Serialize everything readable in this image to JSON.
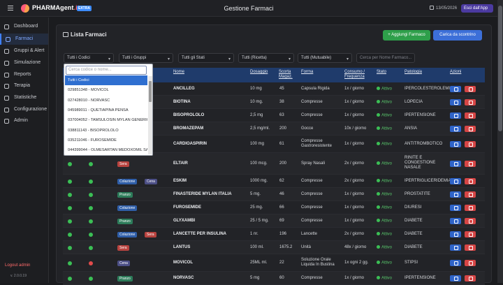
{
  "app": {
    "brand": "PHARMAgent",
    "brand_dot": ".it",
    "badge": "EXTRA"
  },
  "header": {
    "title": "Gestione Farmaci",
    "date": "13/05/2026",
    "exit_label": "Esci dall'App"
  },
  "sidebar": {
    "items": [
      {
        "label": "Dashboard",
        "icon": "gauge-icon"
      },
      {
        "label": "Farmaci",
        "icon": "pill-icon",
        "active": true
      },
      {
        "label": "Gruppi & Alert",
        "icon": "bell-icon"
      },
      {
        "label": "Simulazione",
        "icon": "play-icon"
      },
      {
        "label": "Reports",
        "icon": "report-icon"
      },
      {
        "label": "Terapia",
        "icon": "calendar-icon"
      },
      {
        "label": "Statistiche",
        "icon": "chart-icon"
      },
      {
        "label": "Configurazione",
        "icon": "gear-icon"
      },
      {
        "label": "Admin",
        "icon": "user-icon"
      }
    ],
    "logout": "Logout admin",
    "version": "v. 2.0.0.19"
  },
  "panel": {
    "title": "Lista Farmaci",
    "add_button": "+ Aggiungi Farmaco",
    "load_button": "Carica da scontrino"
  },
  "filters": {
    "codici": "Tutti i Codici",
    "gruppi": "Tutti i Gruppi",
    "stati": "Tutti gli Stati",
    "ricetta": "Tutti (Ricetta)",
    "mutuabile": "Tutti (Mutuabile)",
    "search_placeholder": "Cerca per Nome Farmaco..."
  },
  "dropdown": {
    "search_placeholder": "Cerca codice o nome...",
    "options": [
      "Tutti i Codici",
      "029851348 - MOVICOL",
      "027428010 - NORVASC",
      "045989011 - QUETIAPINA PENSA",
      "037004052 - TAMSULOSIN MYLAN GENERICS",
      "038811143 - BISOPROLOLO",
      "035211046 - FUROSEMIDE",
      "044399044 - OLMESARTAN MEDOXOMIL SA..."
    ]
  },
  "table": {
    "headers": [
      "Nome",
      "Dosaggio",
      "Scorta Magaz.",
      "Forma",
      "Consumo / Frequenza",
      "Stato",
      "Patologia",
      "Azioni"
    ],
    "status_label": "Attivo",
    "rows": [
      {
        "c1": "",
        "c2": "",
        "tags": [],
        "nome": "ANCILLEG",
        "dos": "10 mg",
        "scorta": "45",
        "forma": "Capsula Rigida",
        "consumo": "1x / giorno",
        "pat": "IPERCOLESTEROLEMIA"
      },
      {
        "c1": "",
        "c2": "",
        "tags": [],
        "nome": "BIOTINA",
        "dos": "10 mg.",
        "scorta": "38",
        "forma": "Compresse",
        "consumo": "1x / giorno",
        "pat": "LOPECIA"
      },
      {
        "c1": "",
        "c2": "",
        "tags": [],
        "nome": "BISOPROLOLO",
        "dos": "2,5 mg",
        "scorta": "63",
        "forma": "Compresse",
        "consumo": "1x / giorno",
        "pat": "IPERTENSIONE"
      },
      {
        "c1": "",
        "c2": "",
        "tags": [],
        "nome": "BROMAZEPAM",
        "dos": "2,5 mg/ml.",
        "scorta": "200",
        "forma": "Gocce",
        "consumo": "10x / giorno",
        "pat": "ANSIA"
      },
      {
        "c1": "",
        "c2": "",
        "tags": [],
        "nome": "CARDIOASPIRIN",
        "dos": "100 mg",
        "scorta": "61",
        "forma": "Compresse Gastroresistente",
        "consumo": "1x / giorno",
        "pat": "ANTITROMBOTICO"
      },
      {
        "c1": "ok",
        "c2": "ok",
        "tags": [
          {
            "t": "Sera",
            "c": "#b8433f"
          }
        ],
        "nome": "ELTAIR",
        "dos": "100 mcg.",
        "scorta": "200",
        "forma": "Spray Nasali",
        "consumo": "2x / giorno",
        "pat": "RINITE E CONGESTIONE NASALE"
      },
      {
        "c1": "ok",
        "c2": "ok",
        "tags": [
          {
            "t": "Colazione",
            "c": "#2f5ea8"
          },
          {
            "t": "Cena",
            "c": "#4c4f86"
          }
        ],
        "nome": "ESKIM",
        "dos": "1000 mg.",
        "scorta": "62",
        "forma": "Compresse",
        "consumo": "2x / giorno",
        "pat": "IPERTRIGLICERIDEMIA"
      },
      {
        "c1": "ok",
        "c2": "ok",
        "tags": [
          {
            "t": "Pranzo",
            "c": "#2d7c5a"
          }
        ],
        "nome": "FINASTERIDE MYLAN ITALIA",
        "dos": "5 mg.",
        "scorta": "46",
        "forma": "Compresse",
        "consumo": "1x / giorno",
        "pat": "PROSTATITE"
      },
      {
        "c1": "ok",
        "c2": "ok",
        "tags": [
          {
            "t": "Colazione",
            "c": "#2f5ea8"
          }
        ],
        "nome": "FUROSEMIDE",
        "dos": "25 mg.",
        "scorta": "66",
        "forma": "Compresse",
        "consumo": "1x / giorno",
        "pat": "DIURESI"
      },
      {
        "c1": "ok",
        "c2": "ok",
        "tags": [
          {
            "t": "Pranzo",
            "c": "#2d7c5a"
          }
        ],
        "nome": "GLYXAMBI",
        "dos": "25 / 5 mg.",
        "scorta": "69",
        "forma": "Compresse",
        "consumo": "1x / giorno",
        "pat": "DIABETE"
      },
      {
        "c1": "ok",
        "c2": "ok",
        "tags": [
          {
            "t": "Colazione",
            "c": "#2f5ea8"
          },
          {
            "t": "Sera",
            "c": "#b8433f"
          }
        ],
        "nome": "LANCETTE PER INSULINA",
        "dos": "1 nr.",
        "scorta": "196",
        "forma": "Lancette",
        "consumo": "2x / giorno",
        "pat": "DIABETE"
      },
      {
        "c1": "ok",
        "c2": "ok",
        "tags": [
          {
            "t": "Sera",
            "c": "#b8433f"
          }
        ],
        "nome": "LANTUS",
        "dos": "100 ml.",
        "scorta": "1675.2",
        "forma": "Unità",
        "consumo": "48x / giorno",
        "pat": "DIABETE"
      },
      {
        "c1": "ok",
        "c2": "no",
        "tags": [
          {
            "t": "Cena",
            "c": "#4c4f86"
          }
        ],
        "nome": "MOVICOL",
        "dos": "25ML ml.",
        "scorta": "22",
        "forma": "Soluzione Orale Liquida In Bustina",
        "consumo": "1x ogni 2 gg.",
        "pat": "STIPSI"
      },
      {
        "c1": "ok",
        "c2": "ok",
        "tags": [
          {
            "t": "Pranzo",
            "c": "#2d7c5a"
          }
        ],
        "nome": "NORVASC",
        "dos": "5 mg",
        "scorta": "60",
        "forma": "Compresse",
        "consumo": "1x / giorno",
        "pat": "IPERTENSIONE"
      }
    ]
  }
}
